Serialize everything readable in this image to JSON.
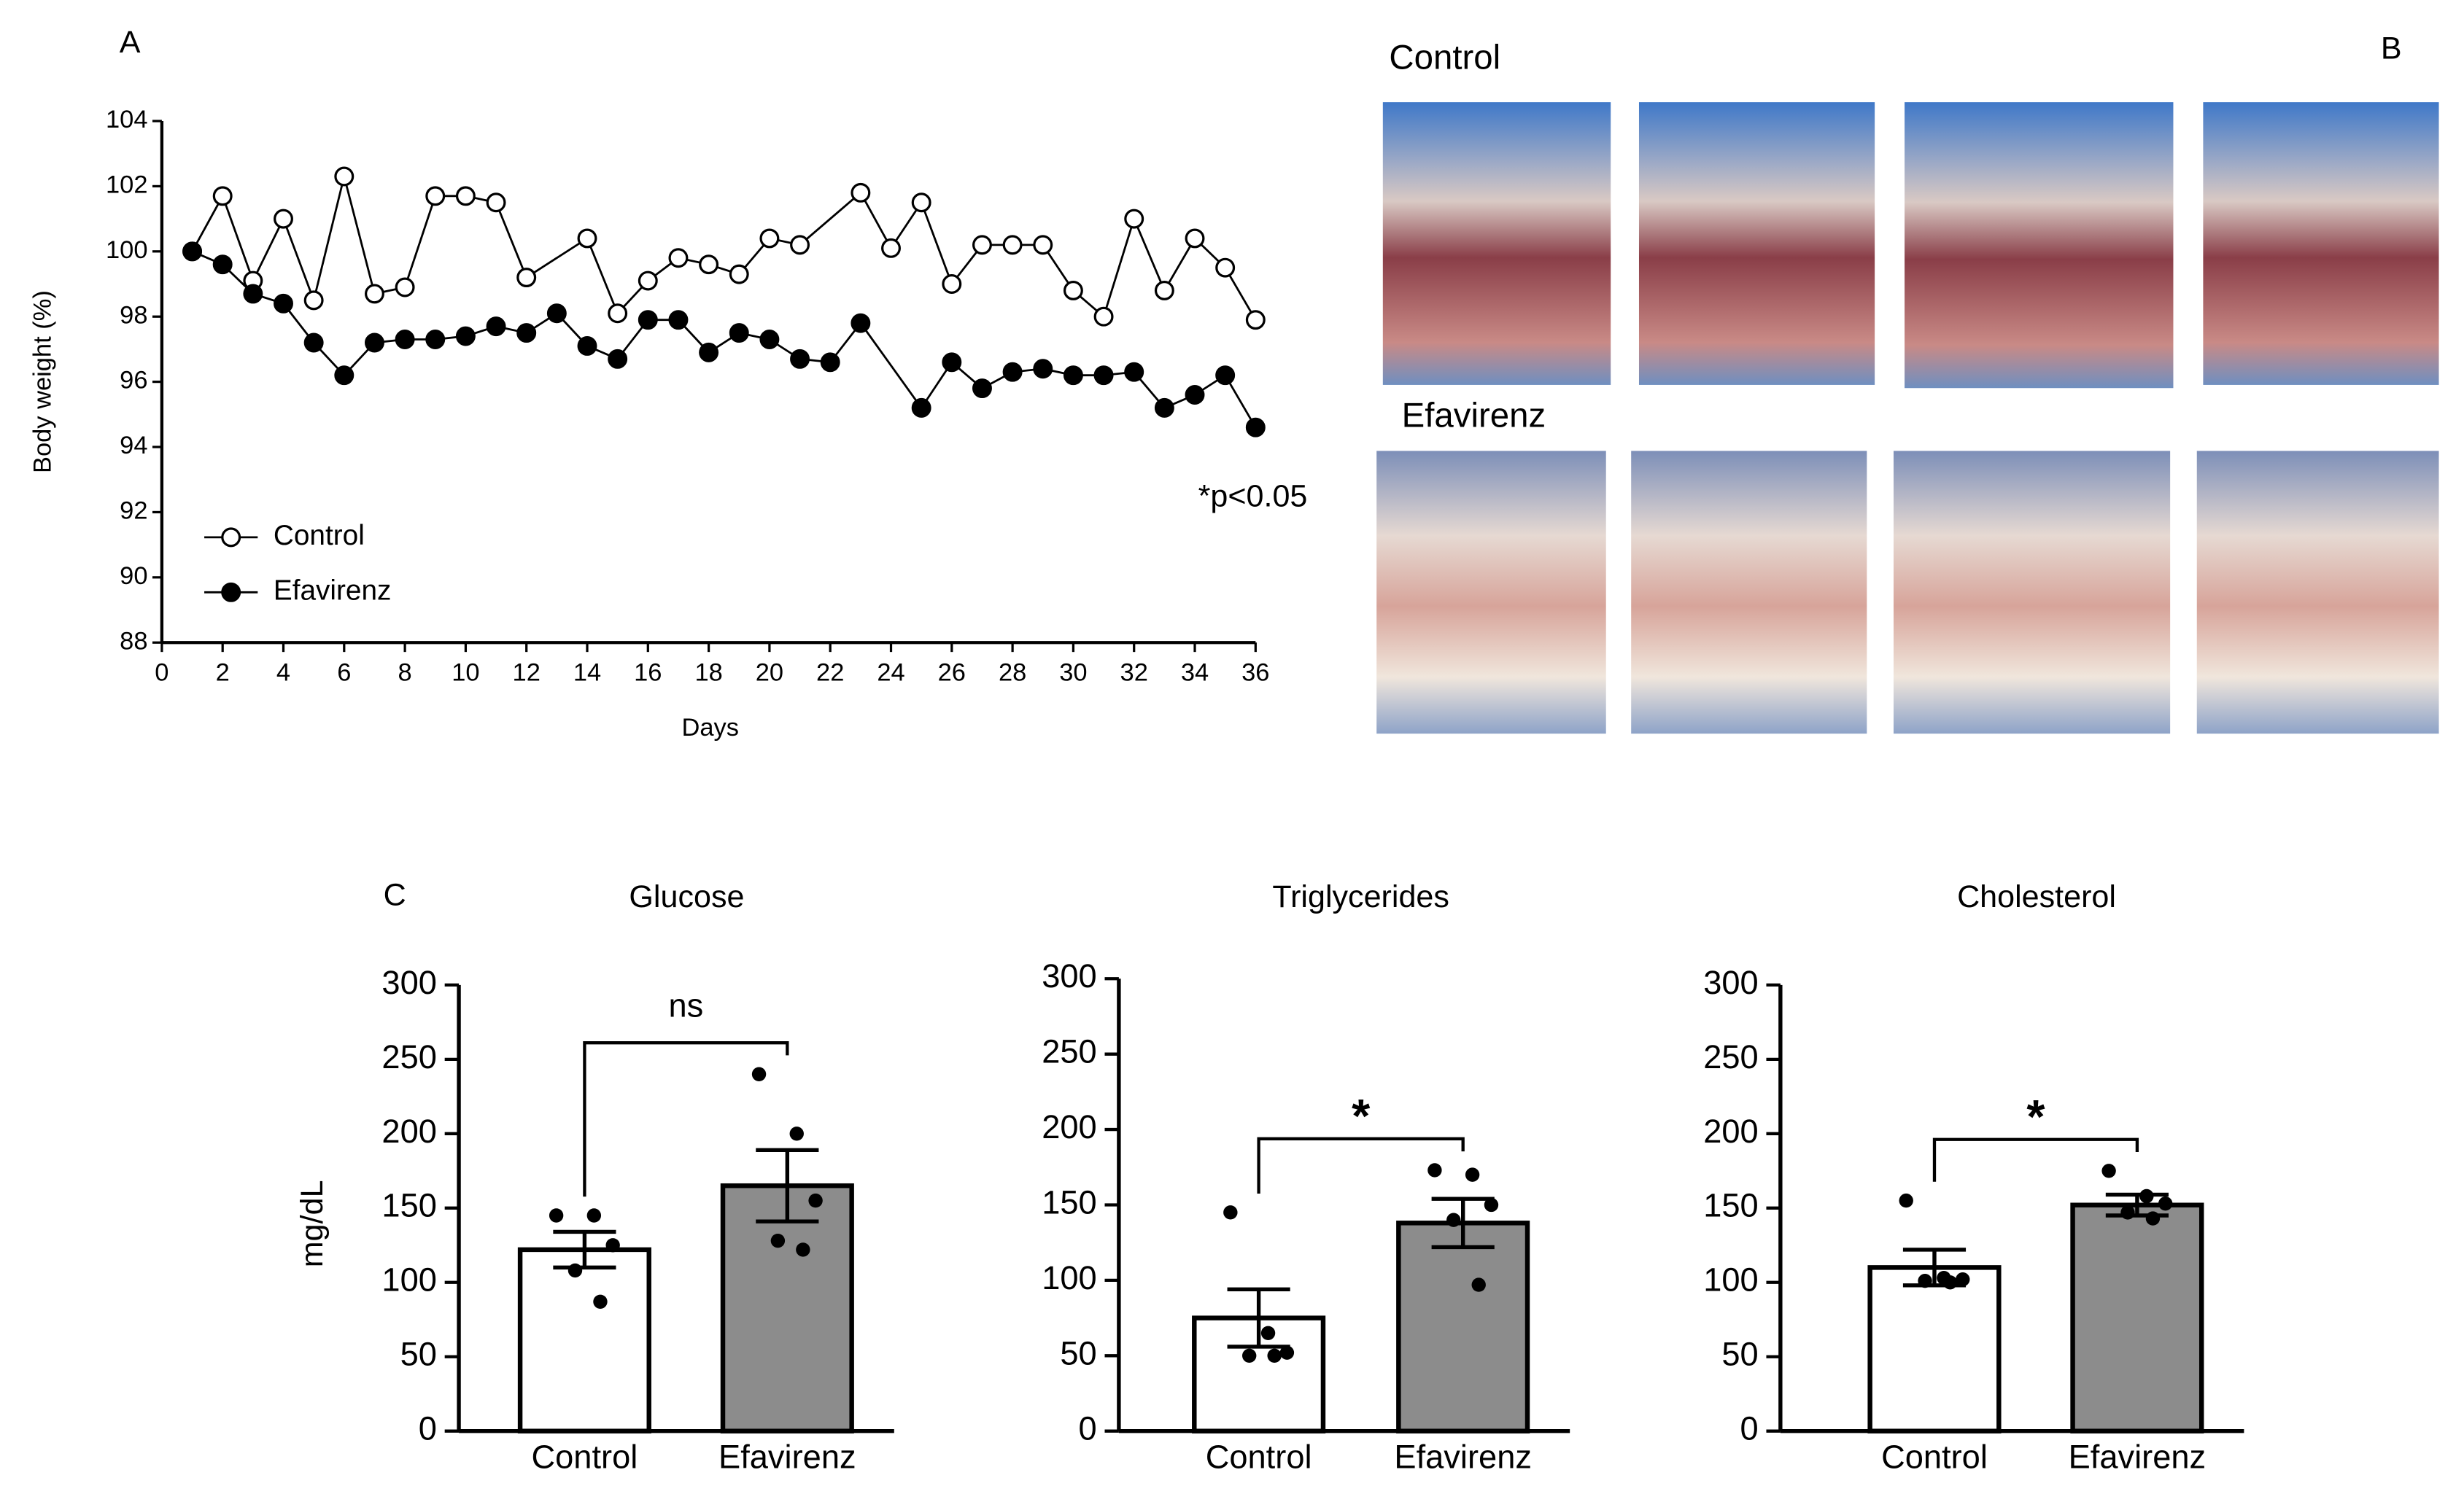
{
  "panel_labels": [
    "A",
    "B",
    "C"
  ],
  "photos": {
    "rows": [
      "Control",
      "Efavirenz"
    ]
  },
  "chart_data": [
    {
      "type": "line",
      "y_label": "Body weight (%)",
      "x_label": "Days",
      "annotation": "*p<0.05",
      "xlim": [
        0,
        36
      ],
      "xticks": [
        0,
        2,
        4,
        6,
        8,
        10,
        12,
        14,
        16,
        18,
        20,
        22,
        24,
        26,
        28,
        30,
        32,
        34,
        36
      ],
      "ylim": [
        88,
        104
      ],
      "yticks": [
        88,
        90,
        92,
        94,
        96,
        98,
        100,
        102,
        104
      ],
      "legend": "lower left",
      "series": [
        {
          "name": "Control",
          "marker": "open",
          "color": "#000000",
          "x": [
            1,
            2,
            3,
            4,
            5,
            6,
            7,
            8,
            9,
            10,
            11,
            12,
            14,
            15,
            16,
            17,
            18,
            19,
            20,
            21,
            23,
            24,
            25,
            26,
            27,
            28,
            29,
            30,
            31,
            32,
            33,
            34,
            35,
            36
          ],
          "values": [
            100,
            101.7,
            99.1,
            101.0,
            98.5,
            102.3,
            98.7,
            98.9,
            101.7,
            101.7,
            101.5,
            99.2,
            100.4,
            98.1,
            99.1,
            99.8,
            99.6,
            99.3,
            100.4,
            100.2,
            101.8,
            100.1,
            101.5,
            99.0,
            100.2,
            100.2,
            100.2,
            98.8,
            98.0,
            101.0,
            98.8,
            100.4,
            99.5,
            97.9
          ]
        },
        {
          "name": "Efavirenz",
          "marker": "filled",
          "color": "#000000",
          "x": [
            1,
            2,
            3,
            4,
            5,
            6,
            7,
            8,
            9,
            10,
            11,
            12,
            13,
            14,
            15,
            16,
            17,
            18,
            19,
            20,
            21,
            22,
            23,
            25,
            26,
            27,
            28,
            29,
            30,
            31,
            32,
            33,
            34,
            35,
            36
          ],
          "values": [
            100,
            99.6,
            98.7,
            98.4,
            97.2,
            96.2,
            97.2,
            97.3,
            97.3,
            97.4,
            97.7,
            97.5,
            98.1,
            97.1,
            96.7,
            97.9,
            97.9,
            96.9,
            97.5,
            97.3,
            96.7,
            96.6,
            97.8,
            95.2,
            96.6,
            95.8,
            96.3,
            96.4,
            96.2,
            96.2,
            96.3,
            95.2,
            95.6,
            96.2,
            94.6
          ]
        }
      ]
    },
    {
      "type": "bar",
      "title": "Glucose",
      "y_label": "mg/dL",
      "categories": [
        "Control",
        "Efavirenz"
      ],
      "values": [
        122,
        165
      ],
      "errors": [
        12,
        24
      ],
      "colors": [
        "#ffffff",
        "#8c8c8c"
      ],
      "points": [
        [
          145,
          145,
          125,
          108,
          87
        ],
        [
          240,
          200,
          155,
          128,
          122
        ]
      ],
      "ylim": [
        0,
        300
      ],
      "yticks": [
        0,
        50,
        100,
        150,
        200,
        250,
        300
      ],
      "significance": "ns"
    },
    {
      "type": "bar",
      "title": "Triglycerides",
      "categories": [
        "Control",
        "Efavirenz"
      ],
      "values": [
        75,
        138
      ],
      "errors": [
        19,
        16
      ],
      "colors": [
        "#ffffff",
        "#8c8c8c"
      ],
      "points": [
        [
          145,
          65,
          52,
          50,
          50
        ],
        [
          173,
          170,
          150,
          140,
          97
        ]
      ],
      "ylim": [
        0,
        300
      ],
      "yticks": [
        0,
        50,
        100,
        150,
        200,
        250,
        300
      ],
      "significance": "*"
    },
    {
      "type": "bar",
      "title": "Cholesterol",
      "categories": [
        "Control",
        "Efavirenz"
      ],
      "values": [
        110,
        152
      ],
      "errors": [
        12,
        7
      ],
      "colors": [
        "#ffffff",
        "#8c8c8c"
      ],
      "points": [
        [
          155,
          103,
          102,
          101,
          100
        ],
        [
          175,
          158,
          153,
          147,
          143
        ]
      ],
      "ylim": [
        0,
        300
      ],
      "yticks": [
        0,
        50,
        100,
        150,
        200,
        250,
        300
      ],
      "significance": "*"
    }
  ]
}
